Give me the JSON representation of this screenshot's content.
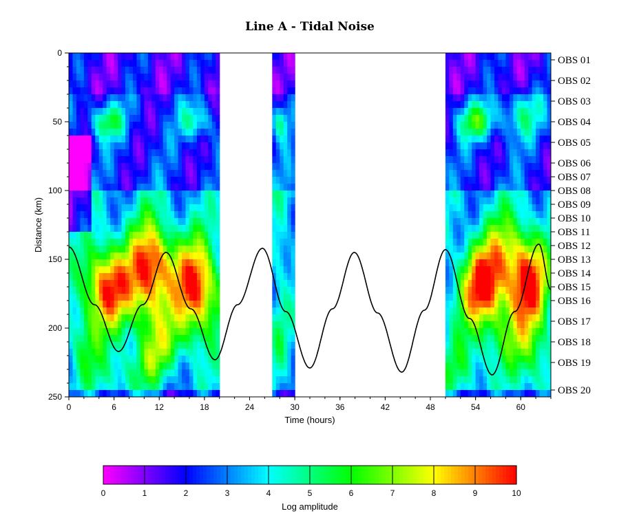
{
  "chart_data": {
    "type": "heatmap",
    "title": "Line A - Tidal Noise",
    "xlabel": "Time (hours)",
    "ylabel": "Distance (km)",
    "xlim": [
      0,
      64
    ],
    "ylim": [
      0,
      250
    ],
    "y_inverted": true,
    "x_ticks": [
      "0",
      "6",
      "12",
      "18",
      "24",
      "30",
      "36",
      "42",
      "48",
      "54",
      "60"
    ],
    "y_ticks": [
      "0",
      "50",
      "100",
      "150",
      "200",
      "250"
    ],
    "data_windows_hours": [
      [
        0,
        20
      ],
      [
        27,
        30
      ],
      [
        50,
        64
      ]
    ],
    "right_axis_stations": [
      {
        "label": "OBS 01",
        "distance_km": 5
      },
      {
        "label": "OBS 02",
        "distance_km": 20
      },
      {
        "label": "OBS 03",
        "distance_km": 35
      },
      {
        "label": "OBS 04",
        "distance_km": 50
      },
      {
        "label": "OBS 05",
        "distance_km": 65
      },
      {
        "label": "OBS 06",
        "distance_km": 80
      },
      {
        "label": "OBS 07",
        "distance_km": 90
      },
      {
        "label": "OBS 08",
        "distance_km": 100
      },
      {
        "label": "OBS 09",
        "distance_km": 110
      },
      {
        "label": "OBS 10",
        "distance_km": 120
      },
      {
        "label": "OBS 11",
        "distance_km": 130
      },
      {
        "label": "OBS 12",
        "distance_km": 140
      },
      {
        "label": "OBS 13",
        "distance_km": 150
      },
      {
        "label": "OBS 14",
        "distance_km": 160
      },
      {
        "label": "OBS 15",
        "distance_km": 170
      },
      {
        "label": "OBS 16",
        "distance_km": 180
      },
      {
        "label": "OBS 17",
        "distance_km": 195
      },
      {
        "label": "OBS 18",
        "distance_km": 210
      },
      {
        "label": "OBS 19",
        "distance_km": 225
      },
      {
        "label": "OBS 20",
        "distance_km": 245
      }
    ],
    "colorbar": {
      "label": "Log amplitude",
      "range": [
        0,
        10
      ],
      "ticks": [
        "0",
        "1",
        "2",
        "3",
        "4",
        "5",
        "6",
        "7",
        "8",
        "9",
        "10"
      ],
      "colors": [
        "#ff00ff",
        "#7f00ff",
        "#0000ff",
        "#007fff",
        "#00ffff",
        "#00ff7f",
        "#00ff00",
        "#7fff00",
        "#ffff00",
        "#ff7f00",
        "#ff0000"
      ]
    },
    "tide_curve": {
      "description": "tidal elevation overlay plotted against distance axis",
      "x_hours": [
        0,
        3.4,
        6.6,
        9.8,
        12.9,
        16.2,
        19.4,
        22.4,
        25.7,
        28.8,
        32.0,
        35.0,
        37.9,
        41.0,
        44.2,
        47.2,
        50.0,
        53.2,
        56.2,
        59.2,
        62.4,
        64.0
      ],
      "y_km": [
        141,
        183,
        217,
        183,
        145,
        186,
        223,
        183,
        142,
        188,
        229,
        186,
        145,
        189,
        232,
        187,
        143,
        193,
        234,
        188,
        139,
        172
      ]
    }
  }
}
